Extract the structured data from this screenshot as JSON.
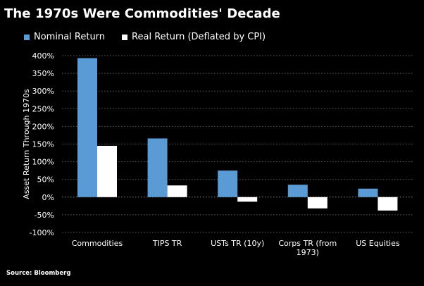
{
  "chart_data": {
    "type": "bar",
    "title": "The 1970s Were Commodities' Decade",
    "ylabel": "Asset Return Through 1970s",
    "xlabel": "",
    "categories": [
      [
        "Commodities"
      ],
      [
        "TIPS TR"
      ],
      [
        "USTs TR (10y)"
      ],
      [
        "Corps TR (from",
        "1973)"
      ],
      [
        "US Equities"
      ]
    ],
    "series": [
      {
        "name": "Nominal Return",
        "color": "#5b9bd5",
        "values": [
          393,
          166,
          75,
          35,
          24
        ]
      },
      {
        "name": "Real Return (Deflated by CPI)",
        "color": "#ffffff",
        "values": [
          145,
          33,
          -13,
          -32,
          -38
        ]
      }
    ],
    "ylim": [
      -100,
      400
    ],
    "yticks": [
      -100,
      -50,
      0,
      50,
      100,
      150,
      200,
      250,
      300,
      350,
      400
    ],
    "ytick_suffix": "%",
    "grid": "horizontal dotted",
    "legend_position": "top-left"
  },
  "source": "Source: Bloomberg"
}
